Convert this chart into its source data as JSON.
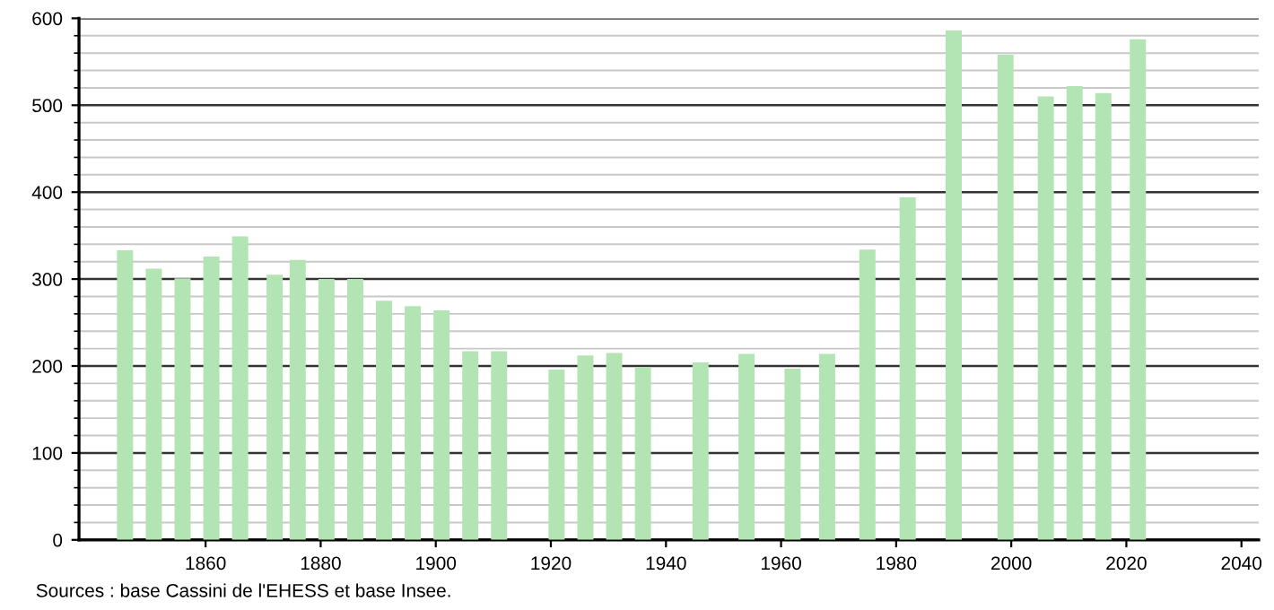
{
  "chart_data": {
    "type": "bar",
    "x": [
      1846,
      1851,
      1856,
      1861,
      1866,
      1872,
      1876,
      1881,
      1886,
      1891,
      1896,
      1901,
      1906,
      1911,
      1921,
      1926,
      1931,
      1936,
      1946,
      1954,
      1962,
      1968,
      1975,
      1982,
      1990,
      1999,
      2006,
      2011,
      2016,
      2022
    ],
    "values": [
      333,
      312,
      301,
      326,
      349,
      305,
      322,
      300,
      300,
      275,
      269,
      264,
      217,
      217,
      196,
      212,
      215,
      199,
      204,
      214,
      197,
      214,
      334,
      394,
      586,
      558,
      510,
      522,
      514,
      576
    ],
    "color": "#b3e4b3",
    "xlim": [
      1838,
      2043
    ],
    "xticks": [
      1860,
      1880,
      1900,
      1920,
      1940,
      1960,
      1980,
      2000,
      2020,
      2040
    ],
    "ylim": [
      0,
      600
    ],
    "yticks": [
      0,
      100,
      200,
      300,
      400,
      500,
      600
    ],
    "grid": "y",
    "annotations": [
      "Sources : base Cassini de l'EHESS et base Insee."
    ]
  }
}
